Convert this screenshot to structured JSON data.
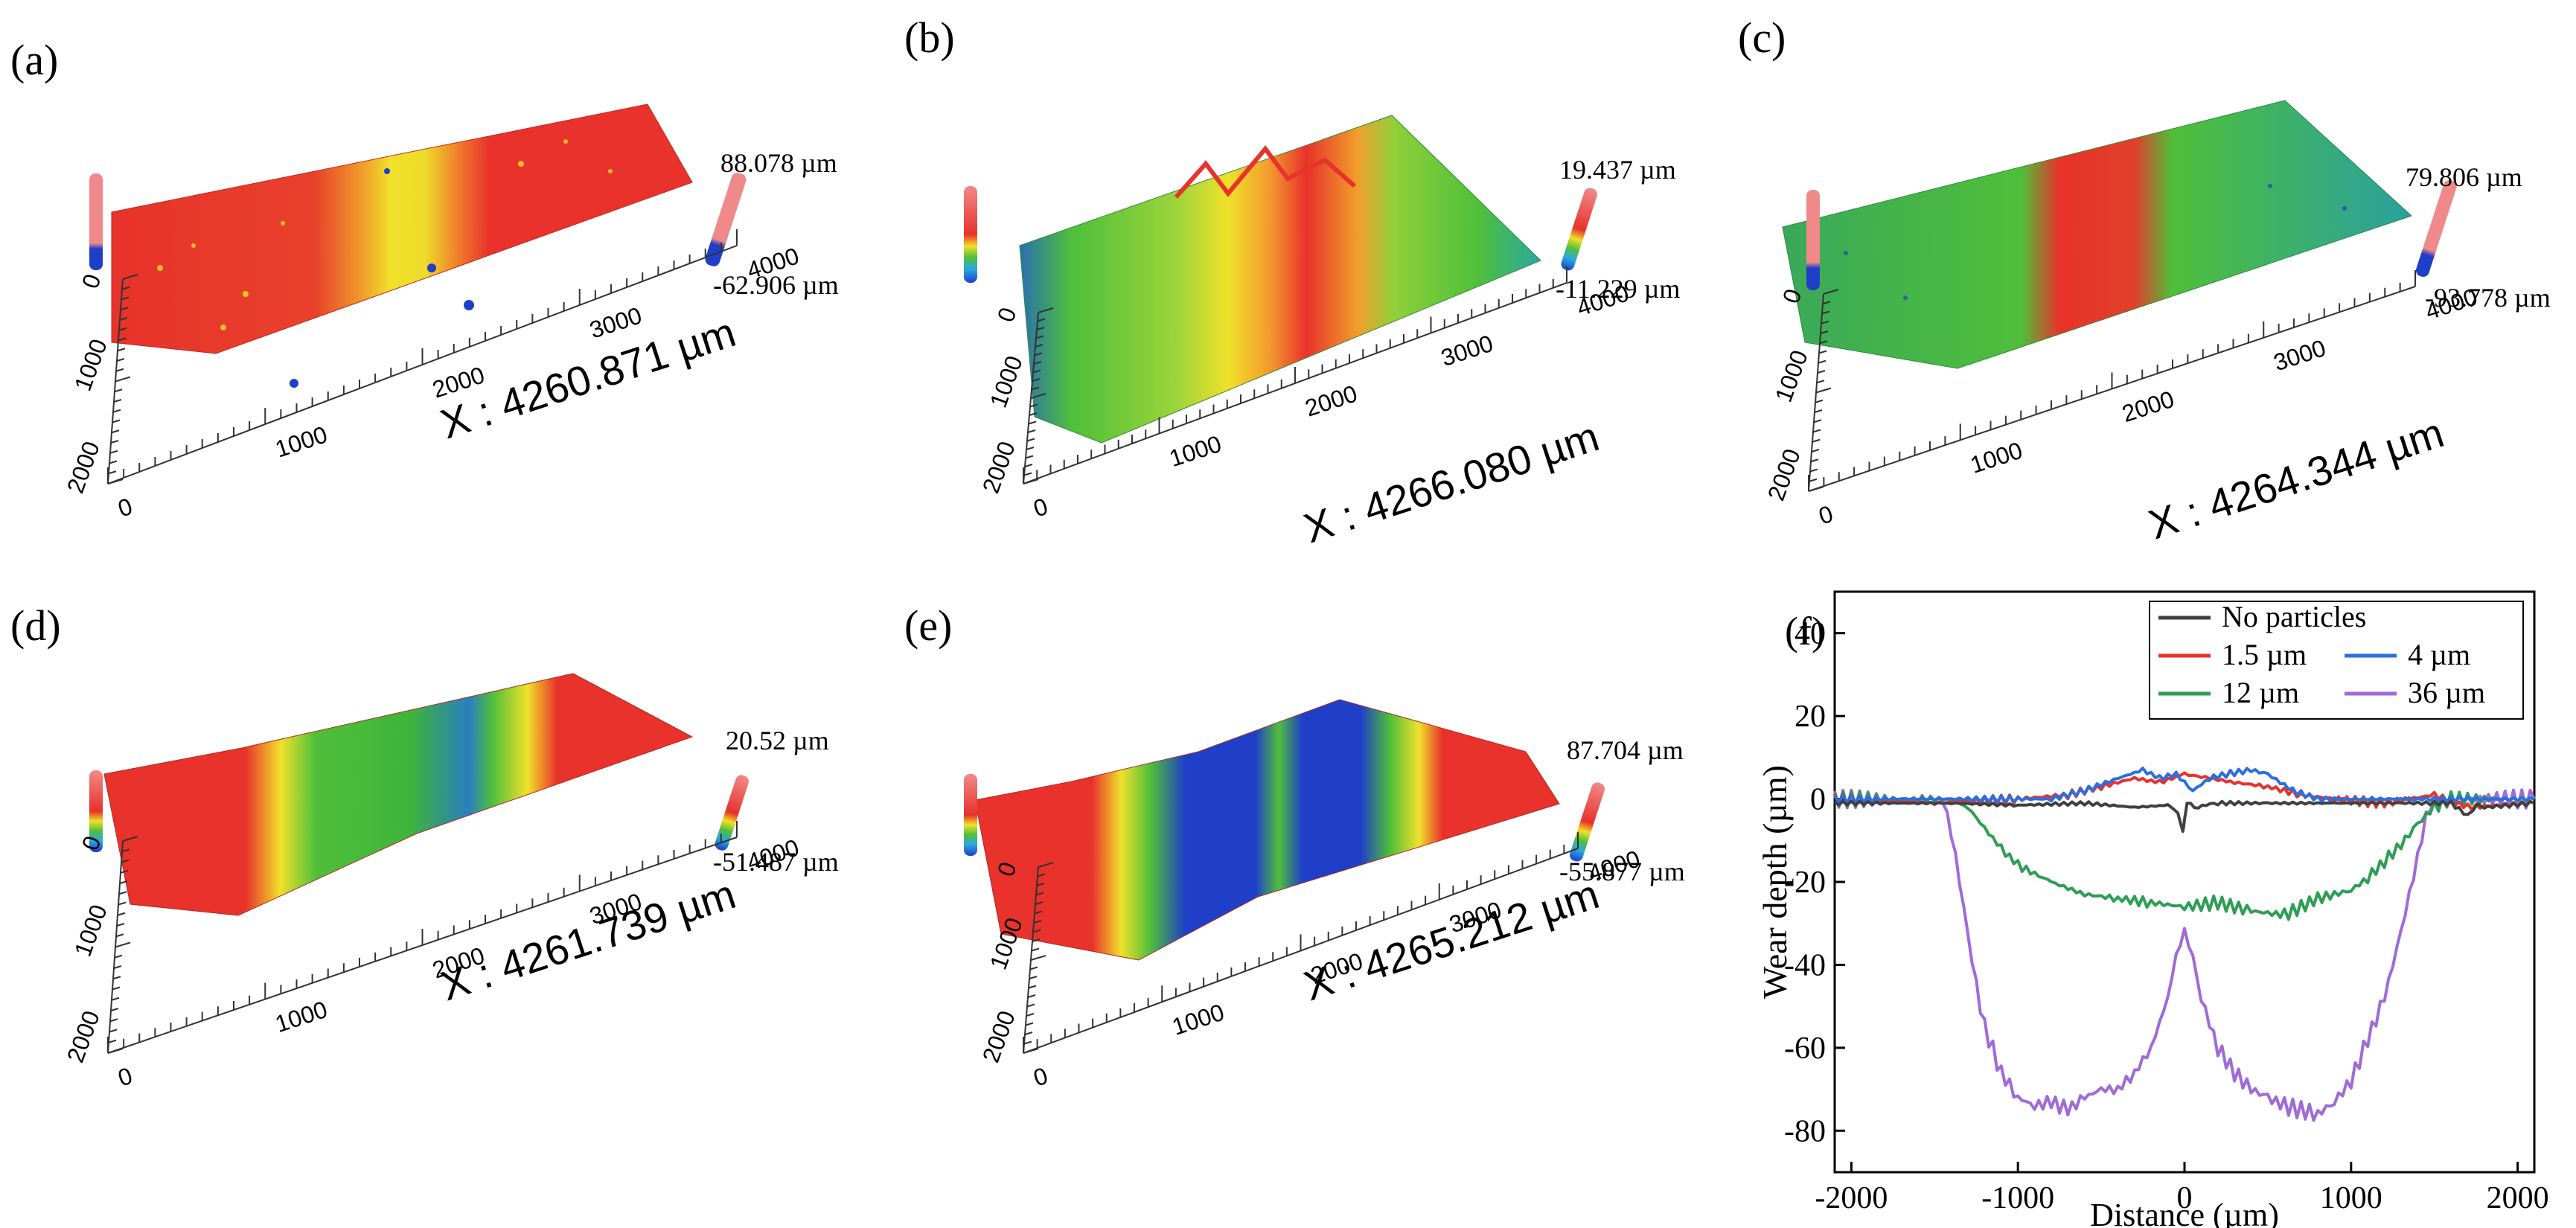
{
  "panels": [
    {
      "id": "a",
      "label": "(a)",
      "zmax": "88.078 µm",
      "zmin": "-62.906 µm",
      "xlabel": "X : 4260.871 µm",
      "x_ticks": [
        "0",
        "1000",
        "2000",
        "3000",
        "4000"
      ],
      "y_ticks": [
        "0",
        "1000",
        "2000"
      ],
      "surface": "flat-red-yellow-track"
    },
    {
      "id": "b",
      "label": "(b)",
      "zmax": "19.437 µm",
      "zmin": "-11.229 µm",
      "xlabel": "X : 4266.080 µm",
      "x_ticks": [
        "0",
        "1000",
        "2000",
        "3000",
        "4000"
      ],
      "y_ticks": [
        "0",
        "1000",
        "2000"
      ],
      "surface": "green-with-red-yellow-track"
    },
    {
      "id": "c",
      "label": "(c)",
      "zmax": "79.806 µm",
      "zmin": "-93.778 µm",
      "xlabel": "X : 4264.344 µm",
      "x_ticks": [
        "0",
        "1000",
        "2000",
        "3000",
        "4000"
      ],
      "y_ticks": [
        "0",
        "1000",
        "2000"
      ],
      "surface": "green-with-red-track"
    },
    {
      "id": "d",
      "label": "(d)",
      "zmax": "20.52 µm",
      "zmin": "-51.487 µm",
      "xlabel": "X : 4261.739 µm",
      "x_ticks": [
        "0",
        "1000",
        "2000",
        "3000",
        "4000"
      ],
      "y_ticks": [
        "0",
        "1000",
        "2000"
      ],
      "surface": "red-with-green-groove"
    },
    {
      "id": "e",
      "label": "(e)",
      "zmax": "87.704 µm",
      "zmin": "-55.877 µm",
      "xlabel": "X : 4265.212 µm",
      "x_ticks": [
        "0",
        "1000",
        "2000",
        "3000",
        "4000"
      ],
      "y_ticks": [
        "0",
        "1000",
        "2000"
      ],
      "surface": "red-with-blue-groove"
    }
  ],
  "colors": {
    "red": "#e8322b",
    "orange": "#f29a2e",
    "yellow": "#f0e12a",
    "green": "#4fbf3a",
    "teal": "#2aa8a0",
    "blue": "#1f3fc8",
    "grey": "#b0b0b0"
  },
  "chart_data": {
    "type": "line",
    "label": "(f)",
    "xlabel": "Distance (µm)",
    "ylabel": "Wear depth (µm)",
    "xlim": [
      -2100,
      2100
    ],
    "ylim": [
      -90,
      50
    ],
    "x_ticks": [
      -2000,
      -1000,
      0,
      1000,
      2000
    ],
    "y_ticks": [
      40,
      20,
      0,
      -20,
      -40,
      -60,
      -80
    ],
    "legend_position": "top-right",
    "series": [
      {
        "name": "No particles",
        "color": "#404040",
        "x": [
          -2100,
          -1600,
          -1400,
          -1000,
          -600,
          -300,
          -100,
          -40,
          -10,
          0,
          15,
          60,
          200,
          500,
          900,
          1300,
          1600,
          1700,
          1760,
          1800,
          2100
        ],
        "y": [
          -1,
          -1,
          -1,
          -1.5,
          -1,
          -2,
          -1.5,
          -3,
          -8,
          -5,
          -1,
          -2,
          -1,
          -1,
          -1,
          -1,
          -1,
          -4,
          -1,
          -2,
          -1
        ]
      },
      {
        "name": "1.5 µm",
        "color": "#e8322b",
        "x": [
          -2100,
          -1500,
          -1000,
          -700,
          -500,
          -300,
          -150,
          0,
          150,
          300,
          500,
          700,
          900,
          1200,
          1500,
          1700,
          2100
        ],
        "y": [
          0,
          -1,
          0,
          1,
          3,
          5,
          4,
          6,
          5,
          4,
          3,
          1,
          0,
          -1,
          1,
          -2,
          -1
        ]
      },
      {
        "name": "4 µm",
        "color": "#2a6fe0",
        "x": [
          -2100,
          -1500,
          -1000,
          -800,
          -600,
          -400,
          -250,
          -150,
          -50,
          50,
          150,
          250,
          400,
          500,
          650,
          800,
          1000,
          1400,
          2100
        ],
        "y": [
          0,
          0,
          0,
          0,
          2,
          5,
          7,
          5,
          6,
          2,
          5,
          6,
          7,
          6,
          2,
          0,
          0,
          0,
          0
        ]
      },
      {
        "name": "12 µm",
        "color": "#2e9e55",
        "x": [
          -2100,
          -1600,
          -1400,
          -1300,
          -1200,
          -1100,
          -1000,
          -800,
          -600,
          -400,
          -200,
          0,
          200,
          400,
          600,
          800,
          1000,
          1100,
          1200,
          1300,
          1400,
          1500,
          1600,
          2100
        ],
        "y": [
          0,
          0,
          0,
          -2,
          -7,
          -12,
          -16,
          -20,
          -23,
          -24,
          -25,
          -26,
          -25,
          -27,
          -28,
          -24,
          -22,
          -19,
          -15,
          -11,
          -6,
          -2,
          0,
          0
        ]
      },
      {
        "name": "36 µm",
        "color": "#a06ad8",
        "x": [
          -2100,
          -1600,
          -1450,
          -1400,
          -1350,
          -1300,
          -1250,
          -1200,
          -1100,
          -1000,
          -900,
          -800,
          -700,
          -600,
          -500,
          -400,
          -300,
          -200,
          -100,
          -50,
          0,
          50,
          100,
          200,
          300,
          400,
          500,
          600,
          700,
          800,
          900,
          1000,
          1100,
          1200,
          1300,
          1400,
          1450,
          1500,
          1600,
          2100
        ],
        "y": [
          0,
          0,
          0,
          -8,
          -20,
          -33,
          -45,
          -55,
          -66,
          -72,
          -74,
          -73,
          -75,
          -72,
          -70,
          -70,
          -66,
          -60,
          -48,
          -38,
          -32,
          -38,
          -48,
          -60,
          -66,
          -70,
          -72,
          -74,
          -75,
          -76,
          -73,
          -68,
          -58,
          -48,
          -32,
          -14,
          -4,
          0,
          0,
          0
        ]
      }
    ]
  }
}
